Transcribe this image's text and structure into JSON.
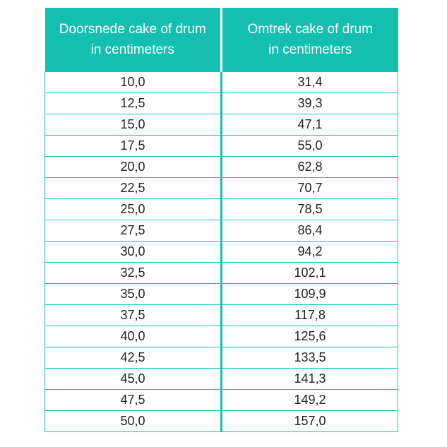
{
  "table": {
    "headers": [
      {
        "line1": "Doorsnede cake of drum",
        "line2": "in centimeters"
      },
      {
        "line1": "Omtrek cake of drum",
        "line2": "in centimeters"
      }
    ],
    "rows": [
      {
        "diameter": "10,0",
        "circumference": "31,4"
      },
      {
        "diameter": "12,5",
        "circumference": "39,3"
      },
      {
        "diameter": "15,0",
        "circumference": "47,1"
      },
      {
        "diameter": "17,5",
        "circumference": "55,0"
      },
      {
        "diameter": "20,0",
        "circumference": "62,8"
      },
      {
        "diameter": "22,5",
        "circumference": "70,7"
      },
      {
        "diameter": "25,0",
        "circumference": "78,5"
      },
      {
        "diameter": "27,5",
        "circumference": "86,4"
      },
      {
        "diameter": "30,0",
        "circumference": "94,2"
      },
      {
        "diameter": "32,5",
        "circumference": "102,1"
      },
      {
        "diameter": "35,0",
        "circumference": "109,9"
      },
      {
        "diameter": "37,5",
        "circumference": "117,8"
      },
      {
        "diameter": "40,0",
        "circumference": "125,6"
      },
      {
        "diameter": "42,5",
        "circumference": "133,5"
      },
      {
        "diameter": "45,0",
        "circumference": "141,3"
      },
      {
        "diameter": "47,5",
        "circumference": "149,2"
      },
      {
        "diameter": "50,0",
        "circumference": "157,0"
      }
    ]
  },
  "colors": {
    "header_background": "#14bfb0",
    "header_text": "#ffffff",
    "border": "#14bfb0",
    "cell_text": "#222222"
  }
}
